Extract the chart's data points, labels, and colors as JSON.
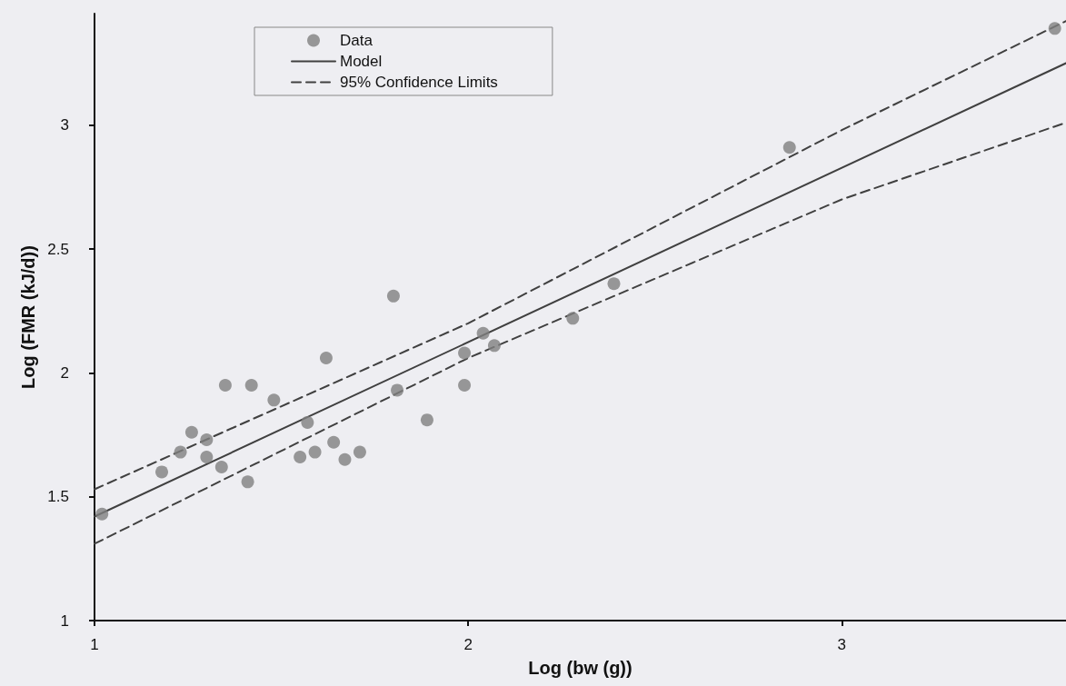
{
  "chart_data": {
    "type": "scatter",
    "xlabel": "Log (bw (g))",
    "ylabel": "Log (FMR (kJ/d))",
    "xlim": [
      1,
      3.6
    ],
    "xticks": [
      1,
      2,
      3
    ],
    "ylim": [
      1,
      3.45
    ],
    "yticks": [
      1,
      1.5,
      2,
      2.5,
      3
    ],
    "grid": false,
    "legend": "top left",
    "series": [
      {
        "name": "Data",
        "color": "#808080",
        "marker": "circle",
        "x": [
          1.02,
          1.18,
          1.23,
          1.26,
          1.3,
          1.3,
          1.34,
          1.35,
          1.41,
          1.42,
          1.48,
          1.55,
          1.57,
          1.59,
          1.62,
          1.64,
          1.67,
          1.71,
          1.8,
          1.81,
          1.89,
          1.99,
          1.99,
          2.04,
          2.07,
          2.28,
          2.39,
          2.86,
          3.57
        ],
        "values": [
          1.43,
          1.6,
          1.68,
          1.76,
          1.73,
          1.66,
          1.62,
          1.95,
          1.56,
          1.95,
          1.89,
          1.66,
          1.8,
          1.68,
          2.06,
          1.72,
          1.65,
          1.68,
          2.31,
          1.93,
          1.81,
          2.08,
          1.95,
          2.16,
          2.11,
          2.22,
          2.36,
          2.91,
          3.39
        ]
      },
      {
        "name": "Model",
        "type": "line",
        "color": "#404040",
        "line_style": "solid",
        "marker": "none",
        "x": [
          1,
          3.6
        ],
        "values": [
          1.42,
          3.25
        ]
      },
      {
        "name": "95% Confidence Limits",
        "type": "line",
        "color": "#404040",
        "line_style": "dashed",
        "marker": "none",
        "x": [
          1,
          2,
          3,
          3.6
        ],
        "values": [
          1.53,
          2.2,
          2.98,
          3.42
        ]
      },
      {
        "type": "line",
        "color": "#404040",
        "line_style": "dashed",
        "marker": "none",
        "x": [
          1,
          2,
          3,
          3.6
        ],
        "values": [
          1.31,
          2.06,
          2.7,
          3.01
        ]
      }
    ]
  }
}
